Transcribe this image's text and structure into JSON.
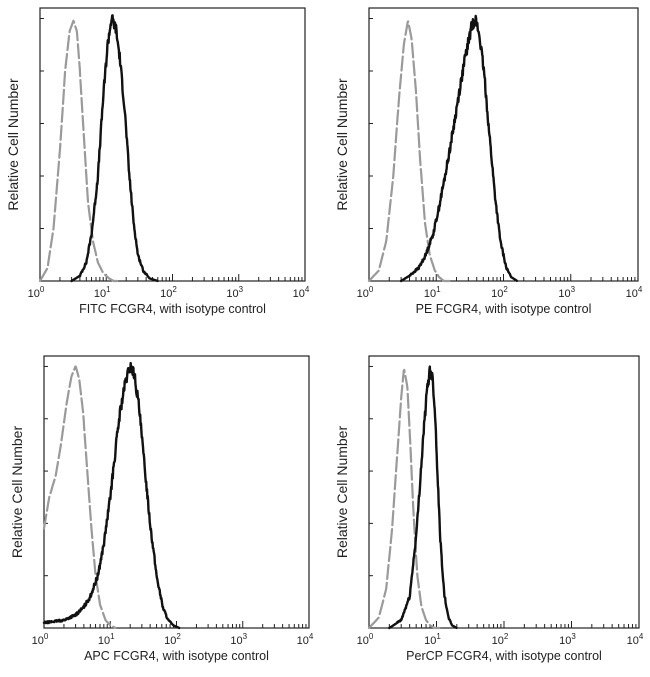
{
  "colors": {
    "sample": "#111111",
    "isotype": "#9a9a9a",
    "frame": "#222222"
  },
  "chart_data": [
    {
      "type": "line",
      "xscale": "log",
      "xlim": [
        1,
        10000
      ],
      "ylim": [
        0,
        1
      ],
      "xticks": [
        "10^0",
        "10^1",
        "10^2",
        "10^3",
        "10^4"
      ],
      "xlabel": "FITC  FCGR4,  with isotype control",
      "ylabel": "Relative Cell Number",
      "series": [
        {
          "style": "dashed",
          "color": "#9a9a9a",
          "x": [
            1,
            1.3,
            1.6,
            2.0,
            2.4,
            2.8,
            3.2,
            3.6,
            4.0,
            4.6,
            5.3,
            6.3,
            7.5,
            9,
            11,
            13,
            16
          ],
          "y": [
            0.0,
            0.05,
            0.2,
            0.5,
            0.8,
            0.95,
            0.99,
            0.95,
            0.8,
            0.55,
            0.3,
            0.15,
            0.07,
            0.03,
            0.01,
            0.0,
            0.0
          ]
        },
        {
          "style": "solid",
          "color": "#111111",
          "x": [
            3,
            4,
            5,
            6,
            7.5,
            9,
            10.5,
            12,
            14,
            16,
            19,
            22,
            26,
            30,
            36,
            45,
            60
          ],
          "y": [
            0.0,
            0.02,
            0.07,
            0.18,
            0.4,
            0.7,
            0.9,
            1.0,
            0.96,
            0.85,
            0.65,
            0.42,
            0.22,
            0.1,
            0.04,
            0.01,
            0.0
          ]
        }
      ]
    },
    {
      "type": "line",
      "xscale": "log",
      "xlim": [
        1,
        10000
      ],
      "ylim": [
        0,
        1
      ],
      "xticks": [
        "10^0",
        "10^1",
        "10^2",
        "10^3",
        "10^4"
      ],
      "xlabel": "PE FCGR4, with isotype control",
      "ylabel": "Relative Cell Number",
      "series": [
        {
          "style": "dashed",
          "color": "#9a9a9a",
          "x": [
            1,
            1.4,
            1.8,
            2.3,
            2.8,
            3.3,
            3.8,
            4.3,
            5.0,
            5.8,
            6.8,
            8.0,
            9.5,
            11,
            13,
            16
          ],
          "y": [
            0.0,
            0.04,
            0.15,
            0.4,
            0.7,
            0.9,
            0.99,
            0.92,
            0.72,
            0.45,
            0.22,
            0.1,
            0.04,
            0.015,
            0.0,
            0.0
          ]
        },
        {
          "style": "solid",
          "color": "#111111",
          "x": [
            3,
            4,
            5.5,
            7,
            9,
            11,
            14,
            18,
            22,
            27,
            33,
            38,
            44,
            52,
            62,
            75,
            90,
            110,
            130,
            160
          ],
          "y": [
            0.0,
            0.02,
            0.05,
            0.1,
            0.18,
            0.28,
            0.42,
            0.58,
            0.72,
            0.85,
            0.96,
            1.0,
            0.93,
            0.78,
            0.55,
            0.32,
            0.15,
            0.05,
            0.015,
            0.0
          ]
        }
      ]
    },
    {
      "type": "line",
      "xscale": "log",
      "xlim": [
        1,
        10000
      ],
      "ylim": [
        0,
        1
      ],
      "xticks": [
        "10^0",
        "10^1",
        "10^2",
        "10^3",
        "10^4"
      ],
      "xlabel": "APC FCGR4, with isotype control",
      "ylabel": "Relative Cell Number",
      "series": [
        {
          "style": "dashed",
          "color": "#9a9a9a",
          "x": [
            1,
            1.2,
            1.5,
            1.8,
            2.2,
            2.6,
            3.0,
            3.4,
            3.9,
            4.5,
            5.2,
            6,
            7,
            8.5,
            10,
            12
          ],
          "y": [
            0.38,
            0.5,
            0.58,
            0.7,
            0.86,
            0.96,
            1.0,
            0.95,
            0.82,
            0.6,
            0.38,
            0.2,
            0.09,
            0.03,
            0.01,
            0.0
          ]
        },
        {
          "style": "solid",
          "color": "#111111",
          "x": [
            1,
            2,
            3,
            4,
            5,
            6.5,
            8,
            10,
            12,
            14,
            17,
            20,
            23,
            27,
            32,
            40,
            50,
            62,
            75,
            90,
            110
          ],
          "y": [
            0.02,
            0.03,
            0.05,
            0.08,
            0.12,
            0.2,
            0.32,
            0.5,
            0.68,
            0.82,
            0.94,
            1.0,
            0.97,
            0.85,
            0.65,
            0.4,
            0.2,
            0.08,
            0.03,
            0.01,
            0.0
          ]
        }
      ]
    },
    {
      "type": "line",
      "xscale": "log",
      "xlim": [
        1,
        10000
      ],
      "ylim": [
        0,
        1
      ],
      "xticks": [
        "10^0",
        "10^1",
        "10^2",
        "10^3",
        "10^4"
      ],
      "xlabel": "PerCP FCGR4, with isotype control",
      "ylabel": "Relative Cell Number",
      "series": [
        {
          "style": "dashed",
          "color": "#9a9a9a",
          "x": [
            1,
            1.4,
            1.8,
            2.2,
            2.6,
            3.0,
            3.3,
            3.7,
            4.1,
            4.6,
            5.2,
            6,
            7,
            8,
            9.5,
            11
          ],
          "y": [
            0.0,
            0.04,
            0.15,
            0.38,
            0.65,
            0.88,
            0.99,
            0.92,
            0.7,
            0.42,
            0.2,
            0.08,
            0.03,
            0.01,
            0.0,
            0.0
          ]
        },
        {
          "style": "solid",
          "color": "#111111",
          "x": [
            2,
            3,
            4,
            5,
            5.8,
            6.5,
            7.2,
            8,
            8.8,
            9.6,
            10.5,
            11.5,
            13,
            15,
            17,
            20
          ],
          "y": [
            0.0,
            0.03,
            0.12,
            0.35,
            0.58,
            0.76,
            0.9,
            0.99,
            0.95,
            0.8,
            0.55,
            0.32,
            0.13,
            0.04,
            0.01,
            0.0
          ]
        }
      ]
    }
  ]
}
